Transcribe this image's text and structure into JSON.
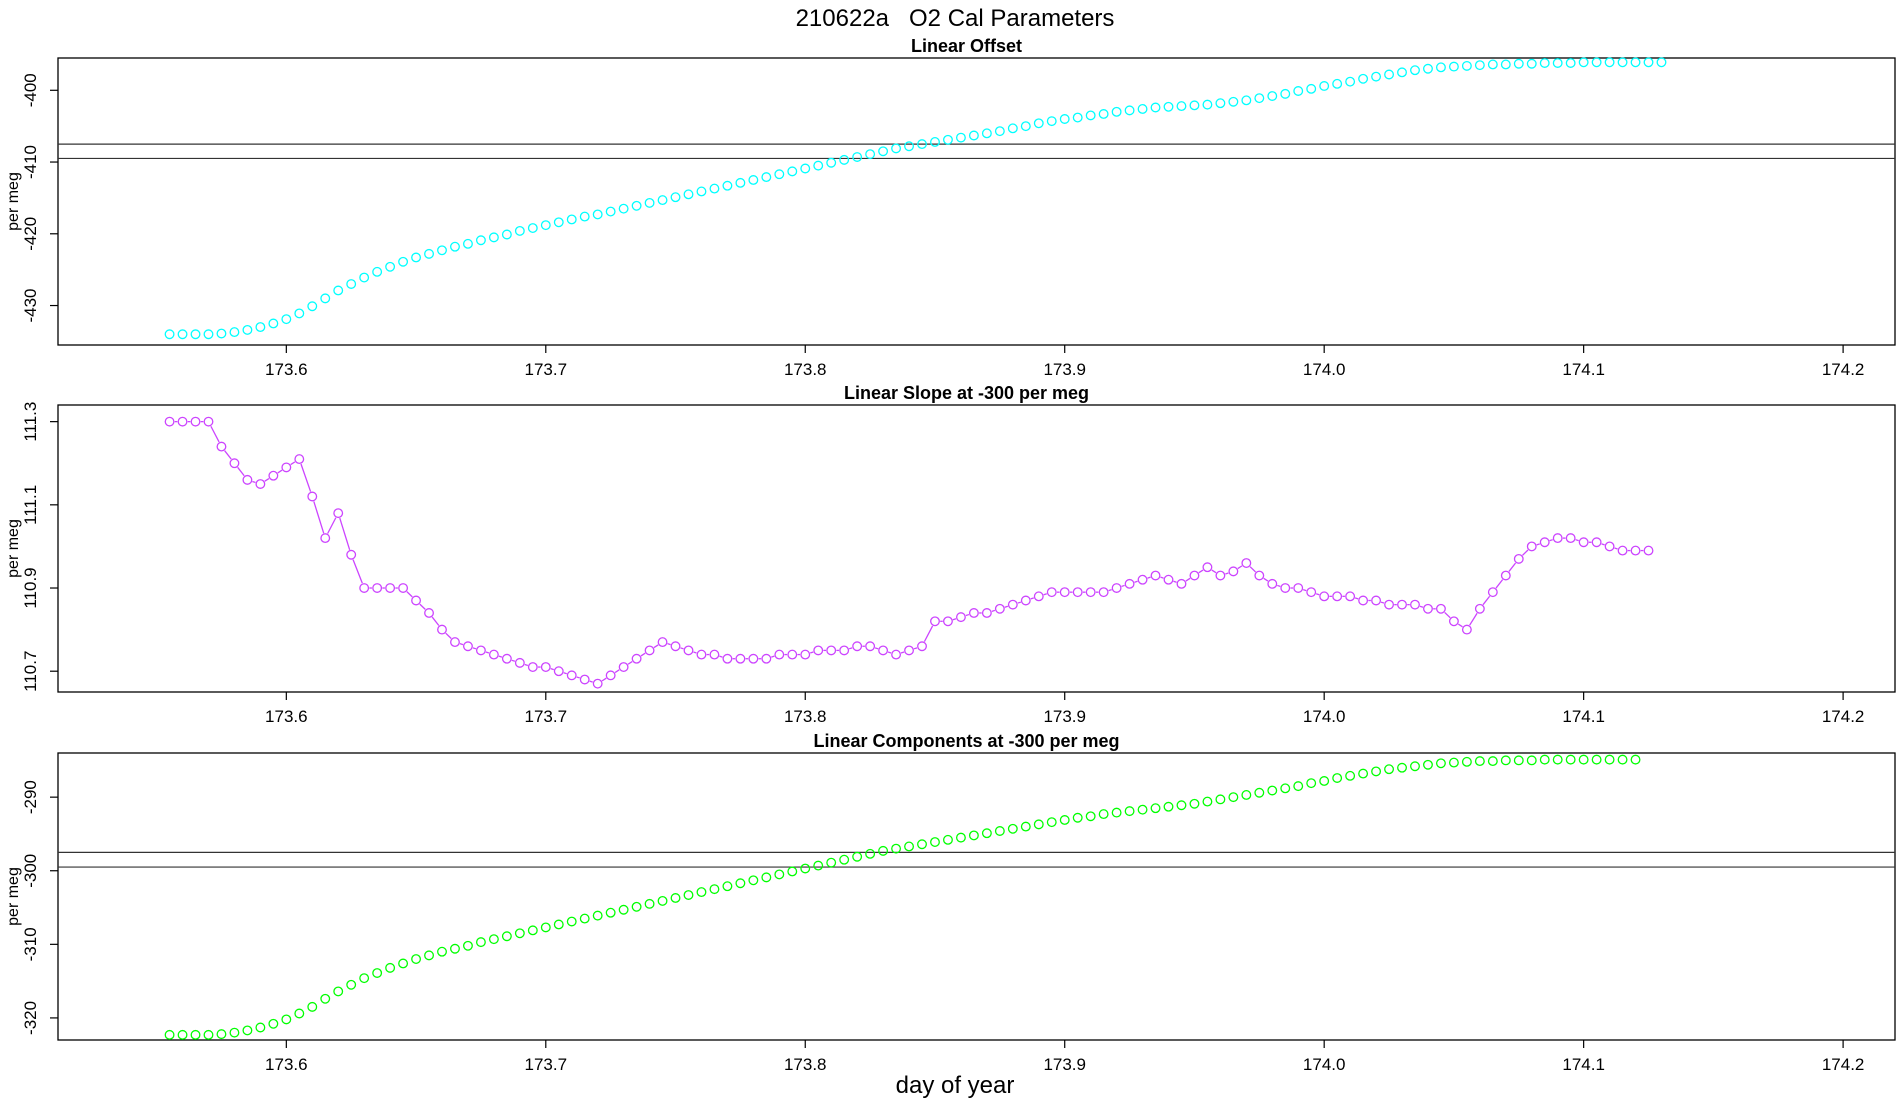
{
  "chart_data": {
    "title": "210622a   O2 Cal Parameters",
    "xlabel": "day of year",
    "panels": [
      {
        "type": "scatter",
        "title": "Linear Offset",
        "ylabel": "per meg",
        "color": "#00ffff",
        "connect": false,
        "xlim": [
          173.512,
          174.22
        ],
        "ylim": [
          -435.5,
          -395.5
        ],
        "xticks": [
          173.6,
          173.7,
          173.8,
          173.9,
          174.0,
          174.1,
          174.2
        ],
        "xtick_labels": [
          "173.6",
          "173.7",
          "173.8",
          "173.9",
          "174.0",
          "174.1",
          "174.2"
        ],
        "yticks": [
          -400,
          -410,
          -420,
          -430
        ],
        "ytick_labels": [
          "-400",
          "-410",
          "-420",
          "-430"
        ],
        "hlines": [
          -407.5,
          -409.5
        ],
        "x_start": 173.555,
        "x_step": 0.005,
        "y": [
          -434.0,
          -434.0,
          -434.0,
          -434.0,
          -433.9,
          -433.7,
          -433.4,
          -433.0,
          -432.5,
          -431.9,
          -431.1,
          -430.1,
          -429.0,
          -427.9,
          -427.0,
          -426.1,
          -425.3,
          -424.6,
          -423.9,
          -423.3,
          -422.8,
          -422.3,
          -421.8,
          -421.4,
          -420.9,
          -420.5,
          -420.1,
          -419.6,
          -419.2,
          -418.8,
          -418.4,
          -418.0,
          -417.6,
          -417.3,
          -416.9,
          -416.5,
          -416.1,
          -415.7,
          -415.3,
          -414.9,
          -414.5,
          -414.1,
          -413.7,
          -413.3,
          -412.9,
          -412.5,
          -412.1,
          -411.7,
          -411.3,
          -410.9,
          -410.5,
          -410.1,
          -409.7,
          -409.3,
          -408.9,
          -408.5,
          -408.1,
          -407.8,
          -407.5,
          -407.2,
          -406.9,
          -406.6,
          -406.3,
          -406.0,
          -405.7,
          -405.3,
          -405.0,
          -404.6,
          -404.3,
          -404.0,
          -403.8,
          -403.5,
          -403.3,
          -403.0,
          -402.8,
          -402.6,
          -402.4,
          -402.3,
          -402.2,
          -402.1,
          -402.0,
          -401.8,
          -401.6,
          -401.4,
          -401.1,
          -400.8,
          -400.5,
          -400.1,
          -399.8,
          -399.4,
          -399.1,
          -398.8,
          -398.4,
          -398.1,
          -397.8,
          -397.5,
          -397.2,
          -397.0,
          -396.8,
          -396.7,
          -396.6,
          -396.5,
          -396.4,
          -396.4,
          -396.3,
          -396.3,
          -396.2,
          -396.2,
          -396.2,
          -396.1,
          -396.1,
          -396.1,
          -396.1,
          -396.1,
          -396.1,
          -396.1
        ]
      },
      {
        "type": "line",
        "title": "Linear Slope at -300 per meg",
        "ylabel": "per meg",
        "color": "#cc44ff",
        "connect": true,
        "xlim": [
          173.512,
          174.22
        ],
        "ylim": [
          110.65,
          111.34
        ],
        "xticks": [
          173.6,
          173.7,
          173.8,
          173.9,
          174.0,
          174.1,
          174.2
        ],
        "xtick_labels": [
          "173.6",
          "173.7",
          "173.8",
          "173.9",
          "174.0",
          "174.1",
          "174.2"
        ],
        "yticks": [
          110.7,
          110.9,
          111.1,
          111.3
        ],
        "ytick_labels": [
          "110.7",
          "110.9",
          "111.1",
          "111.3"
        ],
        "hlines": [],
        "x_start": 173.555,
        "x_step": 0.005,
        "y": [
          111.3,
          111.3,
          111.3,
          111.3,
          111.24,
          111.2,
          111.16,
          111.15,
          111.17,
          111.19,
          111.21,
          111.12,
          111.02,
          111.08,
          110.98,
          110.9,
          110.9,
          110.9,
          110.9,
          110.87,
          110.84,
          110.8,
          110.77,
          110.76,
          110.75,
          110.74,
          110.73,
          110.72,
          110.71,
          110.71,
          110.7,
          110.69,
          110.68,
          110.67,
          110.69,
          110.71,
          110.73,
          110.75,
          110.77,
          110.76,
          110.75,
          110.74,
          110.74,
          110.73,
          110.73,
          110.73,
          110.73,
          110.74,
          110.74,
          110.74,
          110.75,
          110.75,
          110.75,
          110.76,
          110.76,
          110.75,
          110.74,
          110.75,
          110.76,
          110.82,
          110.82,
          110.83,
          110.84,
          110.84,
          110.85,
          110.86,
          110.87,
          110.88,
          110.89,
          110.89,
          110.89,
          110.89,
          110.89,
          110.9,
          110.91,
          110.92,
          110.93,
          110.92,
          110.91,
          110.93,
          110.95,
          110.93,
          110.94,
          110.96,
          110.93,
          110.91,
          110.9,
          110.9,
          110.89,
          110.88,
          110.88,
          110.88,
          110.87,
          110.87,
          110.86,
          110.86,
          110.86,
          110.85,
          110.85,
          110.82,
          110.8,
          110.85,
          110.89,
          110.93,
          110.97,
          111.0,
          111.01,
          111.02,
          111.02,
          111.01,
          111.01,
          111.0,
          110.99,
          110.99,
          110.99
        ]
      },
      {
        "type": "scatter",
        "title": "Linear Components at -300 per meg",
        "ylabel": "per meg",
        "color": "#00ff00",
        "connect": false,
        "xlim": [
          173.512,
          174.22
        ],
        "ylim": [
          -323.0,
          -284.0
        ],
        "xticks": [
          173.6,
          173.7,
          173.8,
          173.9,
          174.0,
          174.1,
          174.2
        ],
        "xtick_labels": [
          "173.6",
          "173.7",
          "173.8",
          "173.9",
          "174.0",
          "174.1",
          "174.2"
        ],
        "yticks": [
          -290,
          -300,
          -310,
          -320
        ],
        "ytick_labels": [
          "-290",
          "-300",
          "-310",
          "-320"
        ],
        "hlines": [
          -297.5,
          -299.5
        ],
        "x_start": 173.555,
        "x_step": 0.005,
        "y": [
          -322.3,
          -322.3,
          -322.3,
          -322.3,
          -322.2,
          -322.0,
          -321.7,
          -321.3,
          -320.8,
          -320.2,
          -319.4,
          -318.5,
          -317.4,
          -316.4,
          -315.5,
          -314.6,
          -313.9,
          -313.2,
          -312.6,
          -312.0,
          -311.5,
          -311.0,
          -310.6,
          -310.2,
          -309.7,
          -309.3,
          -308.9,
          -308.5,
          -308.1,
          -307.7,
          -307.3,
          -306.9,
          -306.5,
          -306.1,
          -305.7,
          -305.3,
          -304.9,
          -304.5,
          -304.1,
          -303.7,
          -303.3,
          -302.9,
          -302.5,
          -302.1,
          -301.7,
          -301.3,
          -300.9,
          -300.5,
          -300.1,
          -299.7,
          -299.3,
          -298.9,
          -298.5,
          -298.1,
          -297.7,
          -297.3,
          -297.0,
          -296.7,
          -296.4,
          -296.1,
          -295.8,
          -295.5,
          -295.2,
          -294.9,
          -294.6,
          -294.3,
          -294.0,
          -293.7,
          -293.4,
          -293.1,
          -292.8,
          -292.6,
          -292.3,
          -292.1,
          -291.9,
          -291.7,
          -291.5,
          -291.3,
          -291.1,
          -290.9,
          -290.6,
          -290.3,
          -290.0,
          -289.7,
          -289.4,
          -289.1,
          -288.8,
          -288.5,
          -288.1,
          -287.8,
          -287.4,
          -287.1,
          -286.8,
          -286.5,
          -286.2,
          -286.0,
          -285.8,
          -285.6,
          -285.4,
          -285.3,
          -285.2,
          -285.1,
          -285.1,
          -285.0,
          -285.0,
          -285.0,
          -284.9,
          -284.9,
          -284.9,
          -284.9,
          -284.9,
          -284.9,
          -284.9,
          -284.9
        ]
      }
    ]
  }
}
